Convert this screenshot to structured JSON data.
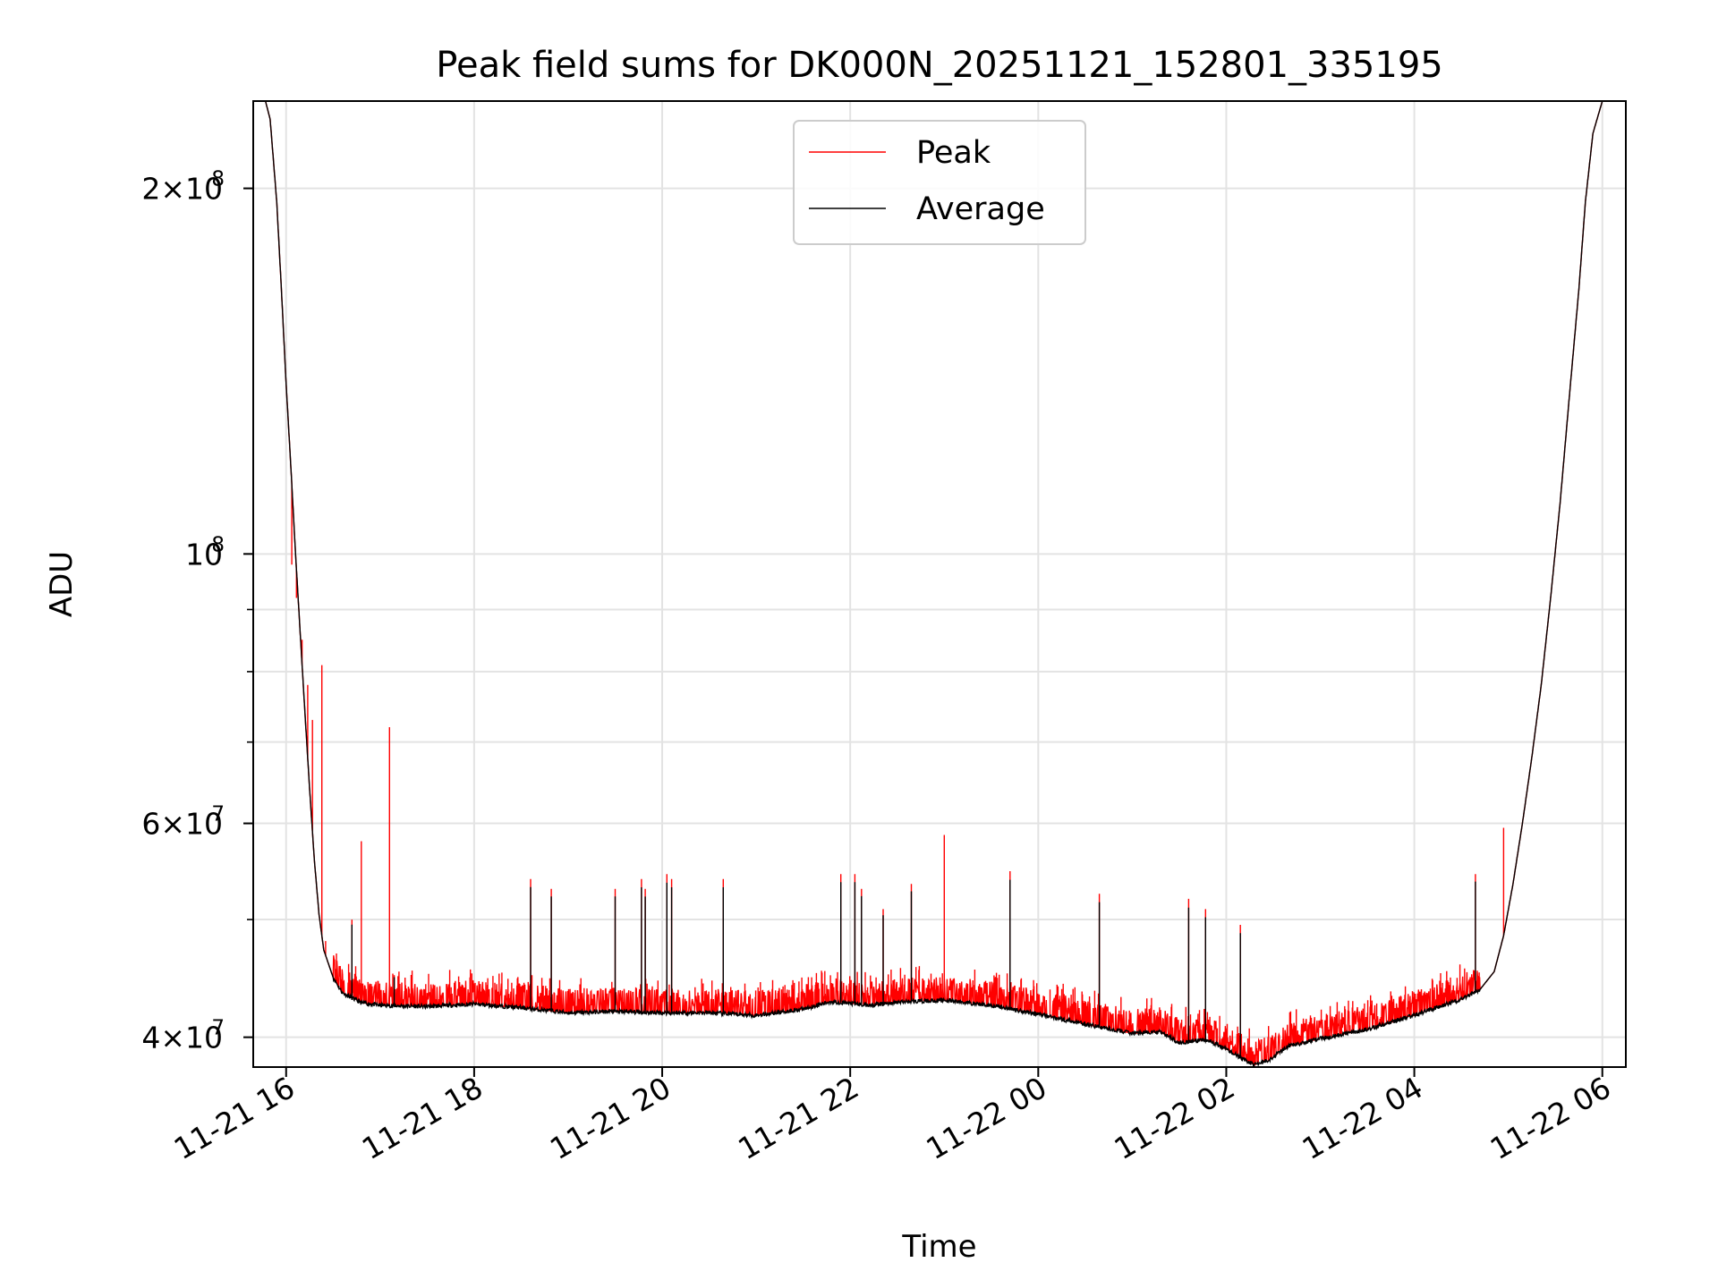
{
  "chart_data": {
    "type": "line",
    "title": "Peak field sums for DK000N_20251121_152801_335195",
    "xlabel": "Time",
    "ylabel": "ADU",
    "yscale": "log",
    "grid": true,
    "legend_position": "top-center",
    "xlim_hours": [
      -0.35,
      14.25
    ],
    "ylim": [
      37800000,
      236000000
    ],
    "x_ticks": [
      {
        "hour": 0,
        "label": "11-21 16"
      },
      {
        "hour": 2,
        "label": "11-21 18"
      },
      {
        "hour": 4,
        "label": "11-21 20"
      },
      {
        "hour": 6,
        "label": "11-21 22"
      },
      {
        "hour": 8,
        "label": "11-22 00"
      },
      {
        "hour": 10,
        "label": "11-22 02"
      },
      {
        "hour": 12,
        "label": "11-22 04"
      },
      {
        "hour": 14,
        "label": "11-22 06"
      }
    ],
    "y_major_ticks": [
      {
        "value": 40000000,
        "mantissa": "4",
        "exponent": "7"
      },
      {
        "value": 60000000,
        "mantissa": "6",
        "exponent": "7"
      },
      {
        "value": 100000000,
        "mantissa": "",
        "exponent": "8"
      },
      {
        "value": 200000000,
        "mantissa": "2",
        "exponent": "8"
      }
    ],
    "y_minor_ticks": [
      50000000,
      70000000,
      80000000,
      90000000
    ],
    "series": [
      {
        "name": "Peak",
        "color": "#ff0000",
        "spikes": [
          {
            "hour": 0.06,
            "value": 98000000
          },
          {
            "hour": 0.11,
            "value": 92000000
          },
          {
            "hour": 0.17,
            "value": 85000000
          },
          {
            "hour": 0.23,
            "value": 78000000
          },
          {
            "hour": 0.28,
            "value": 73000000
          },
          {
            "hour": 0.38,
            "value": 81000000
          },
          {
            "hour": 0.42,
            "value": 48000000
          },
          {
            "hour": 0.7,
            "value": 50000000
          },
          {
            "hour": 0.8,
            "value": 58000000
          },
          {
            "hour": 1.1,
            "value": 72000000
          },
          {
            "hour": 1.15,
            "value": 45000000
          },
          {
            "hour": 2.6,
            "value": 54000000
          },
          {
            "hour": 2.82,
            "value": 53000000
          },
          {
            "hour": 3.5,
            "value": 53000000
          },
          {
            "hour": 3.78,
            "value": 54000000
          },
          {
            "hour": 3.82,
            "value": 53000000
          },
          {
            "hour": 4.05,
            "value": 54500000
          },
          {
            "hour": 4.1,
            "value": 54000000
          },
          {
            "hour": 4.65,
            "value": 54000000
          },
          {
            "hour": 5.9,
            "value": 54500000
          },
          {
            "hour": 6.05,
            "value": 54500000
          },
          {
            "hour": 6.12,
            "value": 53000000
          },
          {
            "hour": 6.35,
            "value": 51000000
          },
          {
            "hour": 6.65,
            "value": 53500000
          },
          {
            "hour": 7.0,
            "value": 58700000
          },
          {
            "hour": 7.7,
            "value": 54800000
          },
          {
            "hour": 8.65,
            "value": 52500000
          },
          {
            "hour": 9.6,
            "value": 52000000
          },
          {
            "hour": 9.78,
            "value": 51000000
          },
          {
            "hour": 10.15,
            "value": 49500000
          },
          {
            "hour": 12.65,
            "value": 54500000
          },
          {
            "hour": 12.95,
            "value": 59500000
          }
        ]
      },
      {
        "name": "Average",
        "color": "#000000",
        "points": [
          [
            -0.35,
            236000000
          ],
          [
            -0.22,
            236000000
          ],
          [
            -0.17,
            228000000
          ],
          [
            -0.1,
            195000000
          ],
          [
            -0.05,
            165000000
          ],
          [
            0,
            138000000
          ],
          [
            0.05,
            118000000
          ],
          [
            0.1,
            100000000
          ],
          [
            0.15,
            86000000
          ],
          [
            0.2,
            74000000
          ],
          [
            0.25,
            64000000
          ],
          [
            0.3,
            56000000
          ],
          [
            0.35,
            50500000
          ],
          [
            0.4,
            47200000
          ],
          [
            0.5,
            44800000
          ],
          [
            0.6,
            43500000
          ],
          [
            0.8,
            42700000
          ],
          [
            1.0,
            42500000
          ],
          [
            1.5,
            42400000
          ],
          [
            2.0,
            42600000
          ],
          [
            2.5,
            42300000
          ],
          [
            3.0,
            41900000
          ],
          [
            3.5,
            42000000
          ],
          [
            4.0,
            41900000
          ],
          [
            4.5,
            41900000
          ],
          [
            5.0,
            41700000
          ],
          [
            5.5,
            42200000
          ],
          [
            5.8,
            42800000
          ],
          [
            6.2,
            42500000
          ],
          [
            6.6,
            42800000
          ],
          [
            7.0,
            42900000
          ],
          [
            7.5,
            42500000
          ],
          [
            8.0,
            41800000
          ],
          [
            8.5,
            41000000
          ],
          [
            9.0,
            40300000
          ],
          [
            9.3,
            40400000
          ],
          [
            9.5,
            39600000
          ],
          [
            9.8,
            39800000
          ],
          [
            10.0,
            39100000
          ],
          [
            10.15,
            38500000
          ],
          [
            10.3,
            37950000
          ],
          [
            10.45,
            38300000
          ],
          [
            10.65,
            39300000
          ],
          [
            11.0,
            39900000
          ],
          [
            11.5,
            40600000
          ],
          [
            12.0,
            41700000
          ],
          [
            12.5,
            43000000
          ],
          [
            12.7,
            43800000
          ],
          [
            12.85,
            45300000
          ],
          [
            12.95,
            48500000
          ],
          [
            13.05,
            53500000
          ],
          [
            13.15,
            60000000
          ],
          [
            13.25,
            68000000
          ],
          [
            13.35,
            78000000
          ],
          [
            13.45,
            92000000
          ],
          [
            13.55,
            110000000
          ],
          [
            13.65,
            135000000
          ],
          [
            13.75,
            165000000
          ],
          [
            13.82,
            195000000
          ],
          [
            13.9,
            222000000
          ],
          [
            14.0,
            236000000
          ],
          [
            14.25,
            236000000
          ]
        ]
      }
    ]
  }
}
